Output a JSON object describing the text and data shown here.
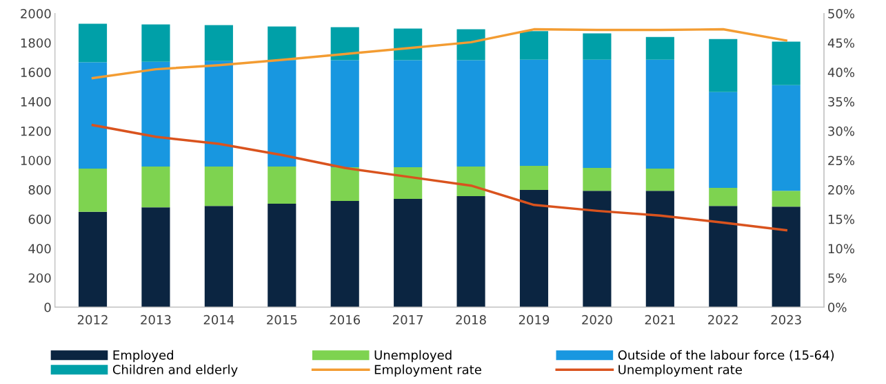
{
  "chart_data": {
    "type": "bar",
    "stacked": true,
    "categories": [
      "2012",
      "2013",
      "2014",
      "2015",
      "2016",
      "2017",
      "2018",
      "2019",
      "2020",
      "2021",
      "2022",
      "2023"
    ],
    "series": [
      {
        "name": "Employed",
        "color": "#0b2541",
        "values": [
          650,
          680,
          690,
          705,
          723,
          737,
          756,
          798,
          793,
          793,
          690,
          685
        ]
      },
      {
        "name": "Unemployed",
        "color": "#7ed350",
        "values": [
          294,
          278,
          268,
          253,
          230,
          216,
          202,
          164,
          155,
          151,
          122,
          108
        ]
      },
      {
        "name": "Outside of the labour force (15-64)",
        "color": "#1897e0",
        "values": [
          723,
          713,
          718,
          723,
          728,
          728,
          723,
          723,
          737,
          741,
          653,
          719
        ]
      },
      {
        "name": "Children and elderly",
        "color": "#00a0a8",
        "values": [
          263,
          254,
          244,
          230,
          225,
          216,
          211,
          195,
          179,
          155,
          361,
          296
        ]
      },
      {
        "name": "Employment rate",
        "color": "#f39c32",
        "type": "line",
        "axis": "y2",
        "values": [
          39.0,
          40.5,
          41.2,
          42.1,
          43.1,
          44.1,
          45.1,
          47.3,
          47.2,
          47.2,
          47.3,
          45.4
        ]
      },
      {
        "name": "Unemployment rate",
        "color": "#d9531e",
        "type": "line",
        "axis": "y2",
        "values": [
          31.0,
          29.0,
          27.8,
          25.9,
          23.7,
          22.2,
          20.7,
          17.4,
          16.4,
          15.6,
          14.4,
          13.1
        ]
      }
    ],
    "ylim": [
      0,
      2000
    ],
    "yticks": [
      0,
      200,
      400,
      600,
      800,
      1000,
      1200,
      1400,
      1600,
      1800,
      2000
    ],
    "y2lim": [
      0,
      50
    ],
    "y2ticks": [
      {
        "value": 0,
        "label": "0%"
      },
      {
        "value": 5,
        "label": "5%"
      },
      {
        "value": 10,
        "label": "10%"
      },
      {
        "value": 15,
        "label": "15%"
      },
      {
        "value": 20,
        "label": "20%"
      },
      {
        "value": 25,
        "label": "25%"
      },
      {
        "value": 30,
        "label": "30%"
      },
      {
        "value": 35,
        "label": "35%"
      },
      {
        "value": 40,
        "label": "40%"
      },
      {
        "value": 45,
        "label": "45%"
      },
      {
        "value": 50,
        "label": "50%"
      }
    ],
    "legend": "bottom",
    "grid": false,
    "marker": "none",
    "line_style": "solid"
  }
}
